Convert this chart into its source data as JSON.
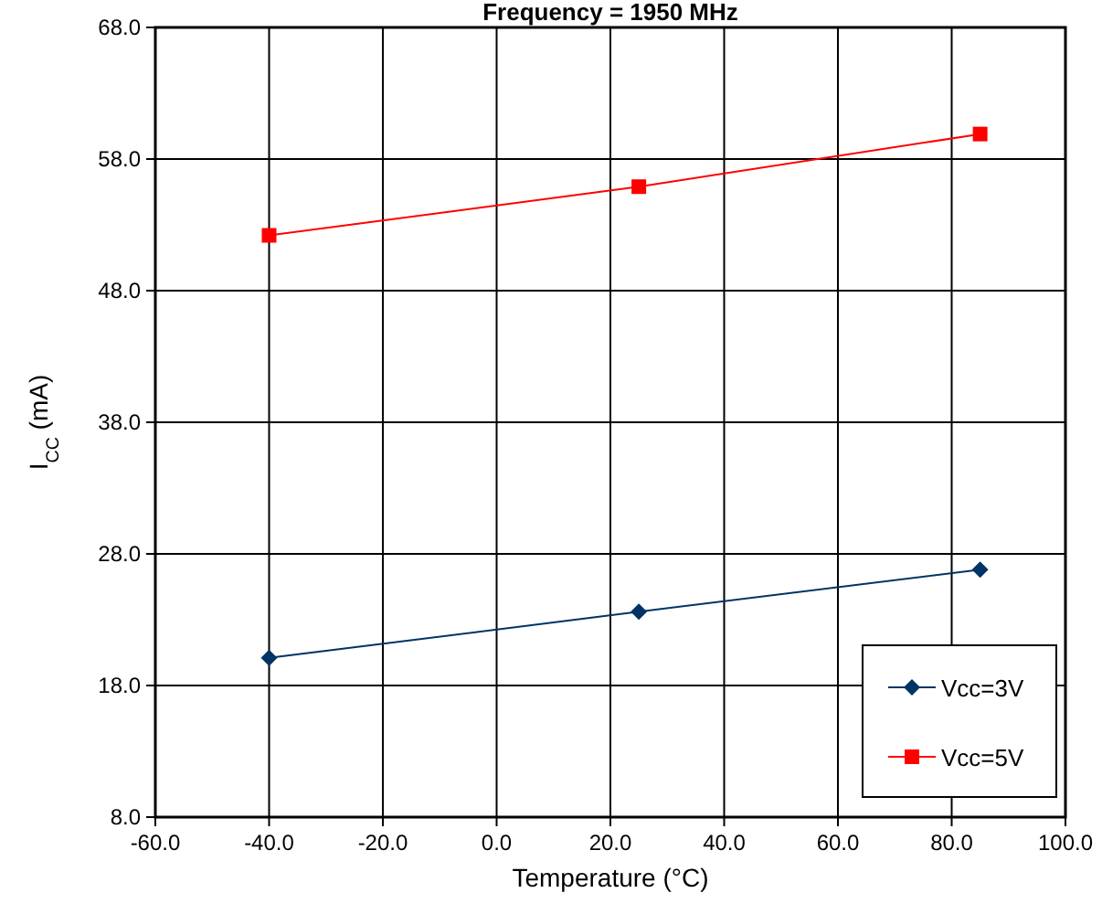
{
  "chart_data": {
    "type": "line",
    "title": "Frequency = 1950 MHz",
    "xlabel": "Temperature (°C)",
    "ylabel": "I$_{CC}$ (mA)",
    "x": [
      -40,
      25,
      85
    ],
    "series": [
      {
        "name": "Vcc=3V",
        "color": "#003366",
        "values": [
          20.1,
          23.6,
          26.8
        ],
        "marker": "diamond"
      },
      {
        "name": "Vcc=5V",
        "color": "#ff0000",
        "values": [
          52.2,
          55.9,
          59.9
        ],
        "marker": "square"
      }
    ],
    "xlim": [
      -60,
      100
    ],
    "xticks": [
      {
        "value": -60,
        "label": "-60.0"
      },
      {
        "value": -40,
        "label": "-40.0"
      },
      {
        "value": -20,
        "label": "-20.0"
      },
      {
        "value": 0,
        "label": "0.0"
      },
      {
        "value": 20,
        "label": "20.0"
      },
      {
        "value": 40,
        "label": "40.0"
      },
      {
        "value": 60,
        "label": "60.0"
      },
      {
        "value": 80,
        "label": "80.0"
      },
      {
        "value": 100,
        "label": "100.0"
      }
    ],
    "ylim": [
      8,
      68
    ],
    "yticks": [
      {
        "value": 8,
        "label": "8.0"
      },
      {
        "value": 18,
        "label": "18.0"
      },
      {
        "value": 28,
        "label": "28.0"
      },
      {
        "value": 38,
        "label": "38.0"
      },
      {
        "value": 48,
        "label": "48.0"
      },
      {
        "value": 58,
        "label": "58.0"
      },
      {
        "value": 68,
        "label": "68.0"
      }
    ],
    "grid": true,
    "legend": "bottom right",
    "line_style": "solid"
  }
}
